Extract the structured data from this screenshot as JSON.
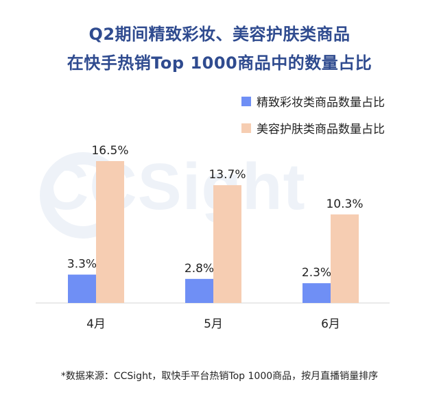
{
  "title_line1": "Q2期间精致彩妆、美容护肤类商品",
  "title_line2": "在快手热销Top 1000商品中的数量占比",
  "watermark": "CCSight",
  "source": "*数据来源：CCSight，取快手平台热销Top 1000商品，按月直播销量排序",
  "colors": {
    "series1": "#6f8ff5",
    "series2": "#f6cdb2",
    "title": "#2f4b8f",
    "axis": "#e3e3e3"
  },
  "chart_data": {
    "type": "bar",
    "title": "Q2期间精致彩妆、美容护肤类商品 在快手热销Top 1000商品中的数量占比",
    "categories": [
      "4月",
      "5月",
      "6月"
    ],
    "series": [
      {
        "name": "精致彩妆类商品数量占比",
        "values": [
          3.3,
          2.8,
          2.3
        ],
        "labels": [
          "3.3%",
          "2.8%",
          "2.3%"
        ]
      },
      {
        "name": "美容护肤类商品数量占比",
        "values": [
          16.5,
          13.7,
          10.3
        ],
        "labels": [
          "16.5%",
          "13.7%",
          "10.3%"
        ]
      }
    ],
    "ylim": [
      0,
      16.5
    ],
    "grid": false,
    "legend": "top-right",
    "xlabel": "",
    "ylabel": ""
  }
}
